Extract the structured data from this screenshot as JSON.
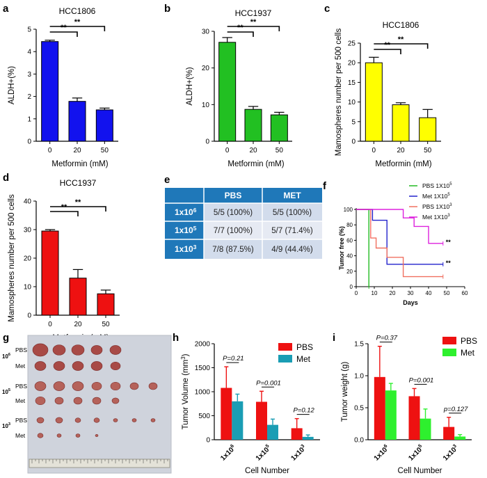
{
  "colors": {
    "blue": "#1212ee",
    "green": "#22c022",
    "yellow": "#ffff00",
    "red": "#ee1111",
    "teal": "#1a9db4",
    "lime": "#2ef02e",
    "tableHead": "#1f78b9",
    "tableRow": "#d2dcec",
    "tableRow2": "#e6eaf3"
  },
  "panels": {
    "a": "a",
    "b": "b",
    "c": "c",
    "d": "d",
    "e": "e",
    "f": "f",
    "g": "g",
    "h": "h",
    "i": "i"
  },
  "chart_data": [
    {
      "id": "a",
      "type": "bar",
      "title": "HCC1806",
      "categories": [
        "0",
        "20",
        "50"
      ],
      "values": [
        4.45,
        1.78,
        1.4
      ],
      "errors": [
        0.06,
        0.15,
        0.08
      ],
      "ylim": [
        0,
        5
      ],
      "yticks": [
        "0",
        "1",
        "2",
        "3",
        "4",
        "5"
      ],
      "ylabel": "ALDH+(%)",
      "xlabel": "Metformin (mM)",
      "color": "#1212ee",
      "sig": [
        "**",
        "**"
      ]
    },
    {
      "id": "b",
      "type": "bar",
      "title": "HCC1937",
      "categories": [
        "0",
        "20",
        "50"
      ],
      "values": [
        27,
        8.7,
        7.2
      ],
      "errors": [
        1.3,
        0.8,
        0.7
      ],
      "ylim": [
        0,
        30
      ],
      "yticks": [
        "0",
        "10",
        "20",
        "30"
      ],
      "ylabel": "ALDH+(%)",
      "xlabel": "Metformin (mM)",
      "color": "#22c022",
      "sig": [
        "**",
        "**"
      ]
    },
    {
      "id": "c",
      "type": "bar",
      "title": "HCC1806",
      "categories": [
        "0",
        "20",
        "50"
      ],
      "values": [
        20,
        9.3,
        6
      ],
      "errors": [
        1.4,
        0.5,
        2.1
      ],
      "ylim": [
        0,
        25
      ],
      "yticks": [
        "0",
        "5",
        "10",
        "15",
        "20",
        "25"
      ],
      "ylabel": "Mamospheres number per 500 cells",
      "xlabel": "Metformin (mM)",
      "color": "#ffff00",
      "sig": [
        "**",
        "**"
      ]
    },
    {
      "id": "d",
      "type": "bar",
      "title": "HCC1937",
      "categories": [
        "0",
        "20",
        "50"
      ],
      "values": [
        29.5,
        13,
        7.5
      ],
      "errors": [
        0.5,
        3,
        1.3
      ],
      "ylim": [
        0,
        40
      ],
      "yticks": [
        "0",
        "10",
        "20",
        "30",
        "40"
      ],
      "ylabel": "Mamospheres number per 500 cells",
      "xlabel": "Metformin (mM)",
      "color": "#ee1111",
      "sig": [
        "**",
        "**"
      ]
    },
    {
      "id": "e",
      "type": "table",
      "columns": [
        "",
        "PBS",
        "MET"
      ],
      "rows": [
        [
          "1x10",
          "6",
          "5/5 (100%)",
          "5/5 (100%)"
        ],
        [
          "1x10",
          "5",
          "7/7 (100%)",
          "5/7 (71.4%)"
        ],
        [
          "1x10",
          "3",
          "7/8 (87.5%)",
          "4/9 (44.4%)"
        ]
      ]
    },
    {
      "id": "f",
      "type": "line",
      "ylabel": "Tumor free (%)",
      "xlabel": "Days",
      "xlim": [
        0,
        60
      ],
      "ylim": [
        0,
        100
      ],
      "xticks": [
        "0",
        "10",
        "20",
        "30",
        "40",
        "50",
        "60"
      ],
      "yticks": [
        "0",
        "20",
        "40",
        "60",
        "80",
        "100"
      ],
      "series": [
        {
          "name": "PBS 1X10",
          "sup": "5",
          "color": "#22bb22",
          "steps": [
            [
              0,
              100
            ],
            [
              7,
              100
            ],
            [
              7,
              0
            ]
          ]
        },
        {
          "name": "Met 1X10",
          "sup": "5",
          "color": "#2222cc",
          "steps": [
            [
              0,
              100
            ],
            [
              9,
              100
            ],
            [
              9,
              86
            ],
            [
              17,
              86
            ],
            [
              17,
              29
            ],
            [
              48,
              29
            ]
          ]
        },
        {
          "name": "PBS 1X10",
          "sup": "3",
          "color": "#f07060",
          "steps": [
            [
              0,
              100
            ],
            [
              8,
              100
            ],
            [
              8,
              63
            ],
            [
              11,
              63
            ],
            [
              11,
              50
            ],
            [
              17,
              50
            ],
            [
              17,
              38
            ],
            [
              26,
              38
            ],
            [
              26,
              13
            ],
            [
              48,
              13
            ]
          ]
        },
        {
          "name": "Met 1X10",
          "sup": "3",
          "color": "#dd22dd",
          "steps": [
            [
              0,
              100
            ],
            [
              26,
              100
            ],
            [
              26,
              89
            ],
            [
              32,
              89
            ],
            [
              32,
              78
            ],
            [
              40,
              78
            ],
            [
              40,
              56
            ],
            [
              48,
              56
            ]
          ]
        }
      ],
      "annotations": [
        "**",
        "**"
      ]
    },
    {
      "id": "g",
      "type": "image",
      "labels": [
        "PBS",
        "Met",
        "PBS",
        "Met",
        "PBS",
        "Met"
      ],
      "doses": [
        [
          "10",
          "6"
        ],
        [
          "10",
          "5"
        ],
        [
          "10",
          "3"
        ]
      ]
    },
    {
      "id": "h",
      "type": "bar",
      "ylabel": "Tumor Volume (mm",
      "ylabel_sup": "3",
      "ylabel_end": ")",
      "xlabel": "Cell Number",
      "categories": [
        [
          "1x10",
          "6"
        ],
        [
          "1x10",
          "5"
        ],
        [
          "1x10",
          "3"
        ]
      ],
      "ylim": [
        0,
        2000
      ],
      "yticks": [
        "0",
        "500",
        "1000",
        "1500",
        "2000"
      ],
      "series": [
        {
          "name": "PBS",
          "color": "#ee1111",
          "values": [
            1080,
            790,
            240
          ],
          "errors": [
            440,
            220,
            200
          ]
        },
        {
          "name": "Met",
          "color": "#1a9db4",
          "values": [
            800,
            310,
            60
          ],
          "errors": [
            150,
            120,
            40
          ]
        }
      ],
      "pvalues": [
        "P=0.21",
        "P=0.001",
        "P=0.12"
      ]
    },
    {
      "id": "i",
      "type": "bar",
      "ylabel": "Tumor weight (g)",
      "xlabel": "Cell Number",
      "categories": [
        [
          "1x10",
          "6"
        ],
        [
          "1x10",
          "5"
        ],
        [
          "1x10",
          "3"
        ]
      ],
      "ylim": [
        0,
        1.5
      ],
      "yticks": [
        "0.0",
        "0.5",
        "1.0",
        "1.5"
      ],
      "series": [
        {
          "name": "PBS",
          "color": "#ee1111",
          "values": [
            0.98,
            0.68,
            0.2
          ],
          "errors": [
            0.48,
            0.12,
            0.15
          ]
        },
        {
          "name": "Met",
          "color": "#2ef02e",
          "values": [
            0.77,
            0.33,
            0.05
          ],
          "errors": [
            0.11,
            0.15,
            0.03
          ]
        }
      ],
      "pvalues": [
        "P=0.37",
        "P=0.001",
        "p=0.127"
      ]
    }
  ]
}
